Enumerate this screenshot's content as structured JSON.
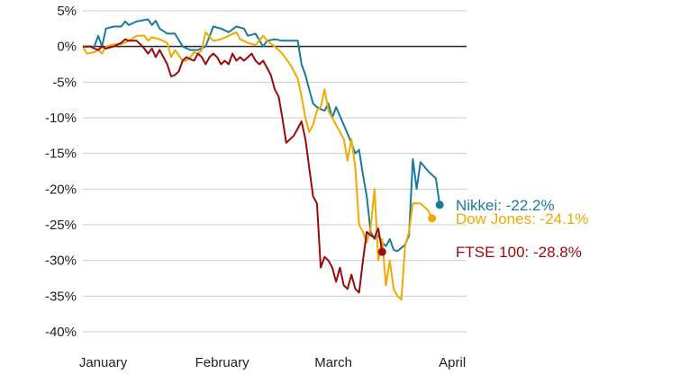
{
  "chart_data": {
    "type": "line",
    "title": "",
    "xlabel": "",
    "ylabel": "",
    "ylim": [
      -40,
      5
    ],
    "yticks": [
      5,
      0,
      -5,
      -10,
      -15,
      -20,
      -25,
      -30,
      -35,
      -40
    ],
    "ytick_labels": [
      "5%",
      "0%",
      "-5%",
      "-10%",
      "-15%",
      "-20%",
      "-25%",
      "-30%",
      "-35%",
      "-40%"
    ],
    "grid": true,
    "x_labels": [
      {
        "label": "January",
        "x": 2
      },
      {
        "label": "February",
        "x": 33
      },
      {
        "label": "March",
        "x": 62
      },
      {
        "label": "April",
        "x": 93
      }
    ],
    "series": [
      {
        "name": "Nikkei",
        "end_label": "Nikkei: -22.2%",
        "color": "#1a7a9c",
        "points": [
          [
            0,
            0
          ],
          [
            3,
            0
          ],
          [
            4,
            1.5
          ],
          [
            5,
            0
          ],
          [
            6,
            2.5
          ],
          [
            8,
            2.8
          ],
          [
            10,
            2.8
          ],
          [
            11,
            3.5
          ],
          [
            12,
            3.0
          ],
          [
            14,
            3.5
          ],
          [
            17,
            3.8
          ],
          [
            18,
            3.0
          ],
          [
            19,
            3.6
          ],
          [
            20,
            2.5
          ],
          [
            22,
            1.8
          ],
          [
            24,
            1.8
          ],
          [
            26,
            0
          ],
          [
            28,
            -0.5
          ],
          [
            30,
            -0.5
          ],
          [
            32,
            0
          ],
          [
            34,
            2.8
          ],
          [
            36,
            2.5
          ],
          [
            38,
            2.0
          ],
          [
            40,
            2.8
          ],
          [
            42,
            2.5
          ],
          [
            43,
            1.5
          ],
          [
            45,
            1.8
          ],
          [
            47,
            0
          ],
          [
            48,
            0.8
          ],
          [
            50,
            1.0
          ],
          [
            52,
            0.8
          ],
          [
            54,
            0.8
          ],
          [
            56,
            0.8
          ],
          [
            57,
            -2.5
          ],
          [
            58,
            -4.0
          ],
          [
            59,
            -6.0
          ],
          [
            60,
            -8.0
          ],
          [
            61,
            -8.5
          ],
          [
            62,
            -8.8
          ],
          [
            63,
            -9.0
          ],
          [
            64,
            -8.0
          ],
          [
            65,
            -10.0
          ],
          [
            66,
            -8.5
          ],
          [
            68,
            -11.0
          ],
          [
            70,
            -13.5
          ],
          [
            71,
            -15.0
          ],
          [
            72,
            -14.5
          ],
          [
            73,
            -18.0
          ],
          [
            74,
            -21.0
          ],
          [
            75,
            -26.0
          ],
          [
            76,
            -27.0
          ],
          [
            77,
            -26.5
          ],
          [
            78,
            -27.5
          ],
          [
            79,
            -28.0
          ],
          [
            80,
            -27.0
          ],
          [
            81,
            -28.5
          ],
          [
            82,
            -28.7
          ],
          [
            84,
            -27.8
          ],
          [
            85,
            -26.5
          ],
          [
            86,
            -15.8
          ],
          [
            87,
            -20.0
          ],
          [
            88,
            -16.2
          ],
          [
            90,
            -17.5
          ],
          [
            92,
            -18.5
          ],
          [
            93,
            -22.2
          ]
        ]
      },
      {
        "name": "Dow Jones",
        "end_label": "Dow Jones: -24.1%",
        "color": "#f2a900",
        "points": [
          [
            0,
            0
          ],
          [
            1,
            -1.0
          ],
          [
            3,
            -0.8
          ],
          [
            4,
            -0.5
          ],
          [
            5,
            -1.0
          ],
          [
            6,
            0.0
          ],
          [
            8,
            0.3
          ],
          [
            10,
            0.3
          ],
          [
            12,
            0.8
          ],
          [
            14,
            1.5
          ],
          [
            16,
            1.5
          ],
          [
            17,
            0.8
          ],
          [
            18,
            1.3
          ],
          [
            20,
            1.0
          ],
          [
            22,
            0.5
          ],
          [
            23,
            -1.5
          ],
          [
            24,
            -0.5
          ],
          [
            26,
            -2.0
          ],
          [
            27,
            -2.0
          ],
          [
            28,
            -1.5
          ],
          [
            29,
            -0.8
          ],
          [
            30,
            -1.0
          ],
          [
            31,
            -0.5
          ],
          [
            32,
            2.0
          ],
          [
            34,
            0.8
          ],
          [
            36,
            1.0
          ],
          [
            38,
            1.5
          ],
          [
            40,
            2.0
          ],
          [
            41,
            1.0
          ],
          [
            43,
            0.5
          ],
          [
            45,
            0.2
          ],
          [
            47,
            1.5
          ],
          [
            48,
            0.8
          ],
          [
            50,
            0.0
          ],
          [
            52,
            -1.0
          ],
          [
            54,
            -2.5
          ],
          [
            56,
            -4.5
          ],
          [
            57,
            -7.0
          ],
          [
            58,
            -10.0
          ],
          [
            59,
            -12.0
          ],
          [
            60,
            -11.0
          ],
          [
            61,
            -9.0
          ],
          [
            62,
            -8.5
          ],
          [
            63,
            -6.0
          ],
          [
            64,
            -9.0
          ],
          [
            66,
            -11.0
          ],
          [
            68,
            -13.0
          ],
          [
            69,
            -16.0
          ],
          [
            70,
            -13.0
          ],
          [
            71,
            -17.0
          ],
          [
            72,
            -25.0
          ],
          [
            73,
            -26.0
          ],
          [
            74,
            -27.5
          ],
          [
            75,
            -25.5
          ],
          [
            76,
            -20.0
          ],
          [
            77,
            -30.0
          ],
          [
            78,
            -27.0
          ],
          [
            79,
            -33.5
          ],
          [
            80,
            -30.0
          ],
          [
            81,
            -34.0
          ],
          [
            82,
            -35.0
          ],
          [
            83,
            -35.5
          ],
          [
            84,
            -28.0
          ],
          [
            85,
            -26.0
          ],
          [
            86,
            -22.0
          ],
          [
            88,
            -22.0
          ],
          [
            89,
            -22.5
          ],
          [
            90,
            -23.0
          ],
          [
            91,
            -24.1
          ]
        ]
      },
      {
        "name": "FTSE 100",
        "end_label": "FTSE 100: -28.8%",
        "color": "#9b0a0a",
        "points": [
          [
            0,
            0
          ],
          [
            2,
            0
          ],
          [
            3,
            -0.3
          ],
          [
            4,
            -0.5
          ],
          [
            5,
            0.0
          ],
          [
            6,
            -0.3
          ],
          [
            8,
            0.0
          ],
          [
            10,
            0.5
          ],
          [
            11,
            1.0
          ],
          [
            12,
            0.8
          ],
          [
            14,
            0.8
          ],
          [
            15,
            0.3
          ],
          [
            16,
            -0.3
          ],
          [
            17,
            -1.0
          ],
          [
            18,
            -0.3
          ],
          [
            19,
            -1.5
          ],
          [
            20,
            -0.5
          ],
          [
            21,
            -1.5
          ],
          [
            22,
            -2.5
          ],
          [
            23,
            -4.2
          ],
          [
            24,
            -4.0
          ],
          [
            25,
            -3.5
          ],
          [
            26,
            -2.0
          ],
          [
            27,
            -1.5
          ],
          [
            28,
            -1.8
          ],
          [
            29,
            -2.0
          ],
          [
            30,
            -1.0
          ],
          [
            31,
            -1.5
          ],
          [
            32,
            -2.5
          ],
          [
            33,
            -1.5
          ],
          [
            34,
            -1.0
          ],
          [
            35,
            -1.5
          ],
          [
            36,
            -2.5
          ],
          [
            37,
            -2.0
          ],
          [
            38,
            -2.5
          ],
          [
            39,
            -1.0
          ],
          [
            40,
            -2.0
          ],
          [
            41,
            -1.5
          ],
          [
            42,
            -2.0
          ],
          [
            43,
            -1.5
          ],
          [
            44,
            -1.0
          ],
          [
            45,
            -2.0
          ],
          [
            46,
            -2.5
          ],
          [
            47,
            -2.0
          ],
          [
            48,
            -3.0
          ],
          [
            49,
            -4.0
          ],
          [
            50,
            -6.0
          ],
          [
            51,
            -7.0
          ],
          [
            52,
            -10.0
          ],
          [
            53,
            -13.5
          ],
          [
            54,
            -13.0
          ],
          [
            55,
            -12.5
          ],
          [
            56,
            -11.5
          ],
          [
            57,
            -10.5
          ],
          [
            58,
            -13.0
          ],
          [
            59,
            -17.0
          ],
          [
            60,
            -21.0
          ],
          [
            61,
            -22.0
          ],
          [
            62,
            -31.0
          ],
          [
            63,
            -29.5
          ],
          [
            64,
            -30.0
          ],
          [
            65,
            -31.0
          ],
          [
            66,
            -33.0
          ],
          [
            67,
            -31.0
          ],
          [
            68,
            -33.5
          ],
          [
            69,
            -34.0
          ],
          [
            70,
            -32.0
          ],
          [
            71,
            -34.0
          ],
          [
            72,
            -34.5
          ],
          [
            73,
            -30.0
          ],
          [
            74,
            -26.0
          ],
          [
            75,
            -26.5
          ],
          [
            76,
            -26.8
          ],
          [
            77,
            -25.5
          ],
          [
            78,
            -28.8
          ]
        ]
      }
    ]
  }
}
